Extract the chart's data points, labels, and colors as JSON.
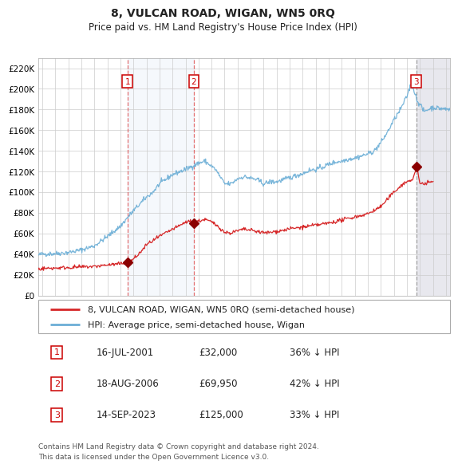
{
  "title": "8, VULCAN ROAD, WIGAN, WN5 0RQ",
  "subtitle": "Price paid vs. HM Land Registry's House Price Index (HPI)",
  "ylim": [
    0,
    230000
  ],
  "yticks": [
    0,
    20000,
    40000,
    60000,
    80000,
    100000,
    120000,
    140000,
    160000,
    180000,
    200000,
    220000
  ],
  "ytick_labels": [
    "£0",
    "£20K",
    "£40K",
    "£60K",
    "£80K",
    "£100K",
    "£120K",
    "£140K",
    "£160K",
    "£180K",
    "£200K",
    "£220K"
  ],
  "xlim_start": 1994.7,
  "xlim_end": 2026.3,
  "xticks": [
    1995,
    1996,
    1997,
    1998,
    1999,
    2000,
    2001,
    2002,
    2003,
    2004,
    2005,
    2006,
    2007,
    2008,
    2009,
    2010,
    2011,
    2012,
    2013,
    2014,
    2015,
    2016,
    2017,
    2018,
    2019,
    2020,
    2021,
    2022,
    2023,
    2024,
    2025,
    2026
  ],
  "hpi_color": "#6baed6",
  "price_color": "#d62728",
  "sale_marker_color": "#8B0000",
  "sale1_x": 2001.54,
  "sale1_y": 32000,
  "sale1_label": "1",
  "sale1_date": "16-JUL-2001",
  "sale1_price": "£32,000",
  "sale1_pct": "36% ↓ HPI",
  "sale2_x": 2006.63,
  "sale2_y": 69950,
  "sale2_label": "2",
  "sale2_date": "18-AUG-2006",
  "sale2_price": "£69,950",
  "sale2_pct": "42% ↓ HPI",
  "sale3_x": 2023.71,
  "sale3_y": 125000,
  "sale3_label": "3",
  "sale3_date": "14-SEP-2023",
  "sale3_price": "£125,000",
  "sale3_pct": "33% ↓ HPI",
  "shaded_start": 2001.54,
  "shaded_end": 2006.63,
  "legend_line1": "8, VULCAN ROAD, WIGAN, WN5 0RQ (semi-detached house)",
  "legend_line2": "HPI: Average price, semi-detached house, Wigan",
  "footnote": "Contains HM Land Registry data © Crown copyright and database right 2024.\nThis data is licensed under the Open Government Licence v3.0.",
  "bg_color": "#ffffff",
  "grid_color": "#cccccc"
}
